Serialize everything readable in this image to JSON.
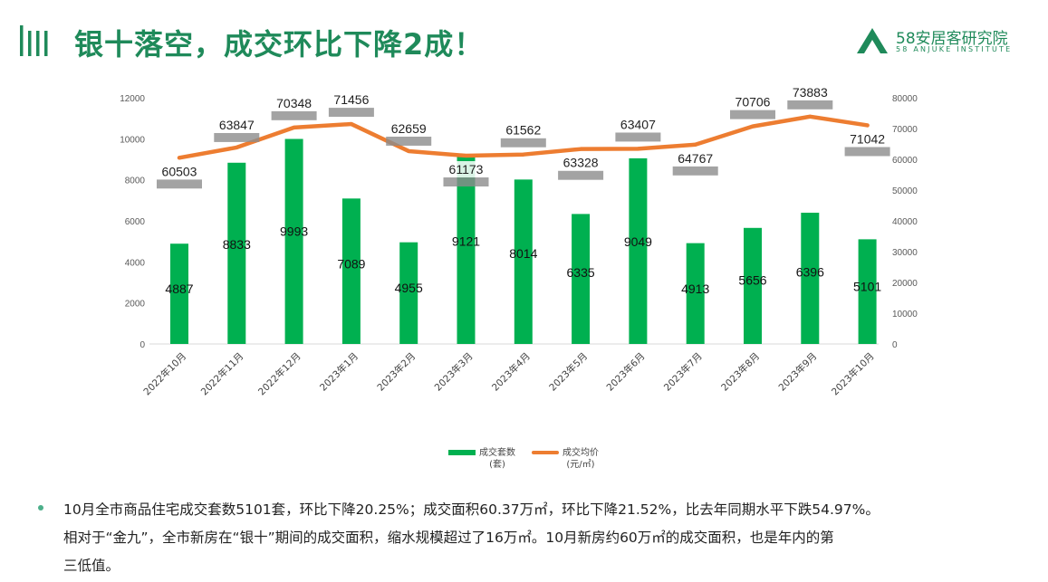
{
  "header": {
    "title": "银十落空，成交环比下降2成！",
    "brand_name": "58安居客研究院",
    "brand_sub": "58 ANJUKE INSTITUTE",
    "colors": {
      "accent": "#1f8a5a"
    },
    "icons": [
      "logo-bars-icon",
      "brand-mark-icon"
    ]
  },
  "chart_data": {
    "type": "bar",
    "categories": [
      "2022年10月",
      "2022年11月",
      "2022年12月",
      "2023年1月",
      "2023年2月",
      "2023年3月",
      "2023年4月",
      "2023年5月",
      "2023年6月",
      "2023年7月",
      "2023年8月",
      "2023年9月",
      "2023年10月"
    ],
    "series": [
      {
        "name": "成交套数",
        "unit": "(套)",
        "type": "bar",
        "axis": "left",
        "color": "#00b050",
        "values": [
          4887,
          8833,
          9993,
          7089,
          4955,
          9121,
          8014,
          6335,
          9049,
          4913,
          5656,
          6396,
          5101
        ]
      },
      {
        "name": "成交均价",
        "unit": "(元/㎡)",
        "type": "line",
        "axis": "right",
        "color": "#ed7d31",
        "values": [
          60503,
          63847,
          70348,
          71456,
          62659,
          61173,
          61562,
          63328,
          63407,
          64767,
          70706,
          73883,
          71042
        ]
      }
    ],
    "y_left": {
      "min": 0,
      "max": 12000,
      "ticks": [
        "0",
        "2000",
        "4000",
        "6000",
        "8000",
        "10000",
        "12000"
      ]
    },
    "y_right": {
      "min": 0,
      "max": 80000,
      "ticks": [
        "0",
        "10000",
        "20000",
        "30000",
        "40000",
        "50000",
        "60000",
        "70000",
        "80000"
      ]
    },
    "grid": false,
    "legend_position": "bottom"
  },
  "text": {
    "line1": "10月全市商品住宅成交套数5101套，环比下降20.25%；成交面积60.37万㎡，环比下降21.52%，比去年同期水平下跌54.97%。",
    "line2": "相对于“金九”，全市新房在“银十”期间的成交面积，缩水规模超过了16万㎡。10月新房约60万㎡的成交面积，也是年内的第",
    "line3": "三低值。"
  }
}
